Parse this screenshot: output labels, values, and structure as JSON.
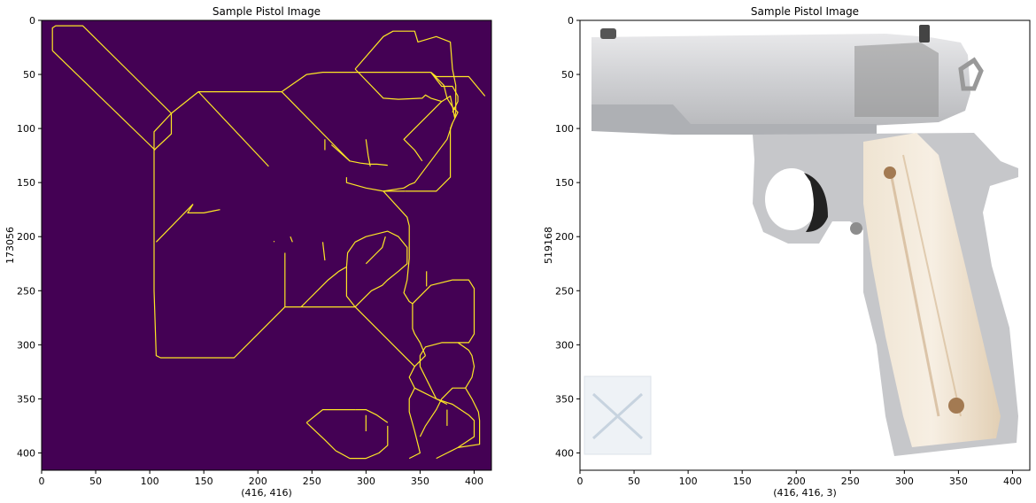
{
  "chart_data": [
    {
      "type": "image",
      "title": "Sample Pistol Image",
      "xlabel": "(416, 416)",
      "ylabel": "173056",
      "xlim": [
        0,
        416
      ],
      "ylim": [
        416,
        0
      ],
      "xticks": [
        0,
        50,
        100,
        150,
        200,
        250,
        300,
        350,
        400
      ],
      "yticks": [
        0,
        50,
        100,
        150,
        200,
        250,
        300,
        350,
        400
      ],
      "background_color": "#440154",
      "edge_color": "#fde725",
      "edges": [
        [
          [
            10,
            28
          ],
          [
            10,
            7
          ],
          [
            13,
            5
          ],
          [
            38,
            5
          ],
          [
            120,
            86
          ],
          [
            104,
            103
          ],
          [
            104,
            250
          ],
          [
            106,
            310
          ],
          [
            110,
            312
          ],
          [
            178,
            312
          ],
          [
            225,
            265
          ],
          [
            290,
            265
          ]
        ],
        [
          [
            10,
            28
          ],
          [
            105,
            120
          ]
        ],
        [
          [
            120,
            86
          ],
          [
            120,
            105
          ],
          [
            104,
            120
          ]
        ],
        [
          [
            120,
            86
          ],
          [
            145,
            66
          ],
          [
            190,
            66
          ],
          [
            200,
            66
          ],
          [
            205,
            66
          ],
          [
            222,
            66
          ]
        ],
        [
          [
            145,
            66
          ],
          [
            210,
            135
          ]
        ],
        [
          [
            222,
            66
          ],
          [
            245,
            50
          ],
          [
            260,
            48
          ],
          [
            270,
            48
          ],
          [
            320,
            48
          ],
          [
            360,
            48
          ]
        ],
        [
          [
            222,
            66
          ],
          [
            285,
            130
          ],
          [
            295,
            132
          ],
          [
            303,
            133
          ],
          [
            310,
            133
          ],
          [
            320,
            134
          ]
        ],
        [
          [
            360,
            48
          ],
          [
            365,
            52
          ],
          [
            395,
            52
          ],
          [
            410,
            70
          ]
        ],
        [
          [
            290,
            45
          ],
          [
            316,
            15
          ],
          [
            325,
            10
          ],
          [
            345,
            10
          ],
          [
            348,
            20
          ],
          [
            365,
            15
          ],
          [
            378,
            20
          ],
          [
            380,
            45
          ],
          [
            383,
            60
          ],
          [
            383,
            85
          ],
          [
            382,
            90
          ],
          [
            378,
            70
          ],
          [
            375,
            72
          ],
          [
            370,
            75
          ],
          [
            360,
            72
          ],
          [
            355,
            69
          ],
          [
            352,
            72
          ],
          [
            330,
            73
          ],
          [
            316,
            72
          ],
          [
            290,
            45
          ]
        ],
        [
          [
            360,
            48
          ],
          [
            370,
            61
          ],
          [
            380,
            61
          ],
          [
            385,
            70
          ],
          [
            385,
            75
          ],
          [
            380,
            85
          ]
        ],
        [
          [
            360,
            48
          ],
          [
            372,
            60
          ],
          [
            375,
            72
          ],
          [
            380,
            80
          ],
          [
            385,
            85
          ],
          [
            380,
            95
          ],
          [
            375,
            110
          ],
          [
            360,
            130
          ],
          [
            345,
            150
          ],
          [
            340,
            152
          ],
          [
            335,
            155
          ]
        ],
        [
          [
            370,
            75
          ],
          [
            360,
            85
          ],
          [
            345,
            100
          ],
          [
            335,
            110
          ],
          [
            340,
            115
          ],
          [
            345,
            120
          ],
          [
            352,
            130
          ]
        ],
        [
          [
            380,
            95
          ],
          [
            378,
            100
          ],
          [
            378,
            145
          ],
          [
            365,
            158
          ],
          [
            352,
            158
          ],
          [
            336,
            158
          ]
        ],
        [
          [
            282,
            145
          ],
          [
            282,
            150
          ],
          [
            300,
            155
          ],
          [
            316,
            158
          ],
          [
            336,
            158
          ]
        ],
        [
          [
            316,
            158
          ],
          [
            338,
            182
          ],
          [
            340,
            190
          ],
          [
            340,
            220
          ],
          [
            338,
            240
          ],
          [
            335,
            252
          ],
          [
            340,
            260
          ],
          [
            343,
            262
          ]
        ],
        [
          [
            343,
            262
          ],
          [
            360,
            245
          ],
          [
            380,
            240
          ],
          [
            395,
            240
          ],
          [
            400,
            248
          ],
          [
            400,
            260
          ],
          [
            400,
            290
          ],
          [
            395,
            298
          ],
          [
            385,
            298
          ]
        ],
        [
          [
            343,
            262
          ],
          [
            343,
            285
          ],
          [
            345,
            290
          ],
          [
            350,
            298
          ],
          [
            355,
            310
          ]
        ],
        [
          [
            385,
            298
          ],
          [
            370,
            298
          ],
          [
            355,
            302
          ],
          [
            350,
            310
          ],
          [
            350,
            320
          ],
          [
            355,
            330
          ],
          [
            360,
            340
          ],
          [
            365,
            350
          ],
          [
            375,
            355
          ]
        ],
        [
          [
            355,
            310
          ],
          [
            345,
            320
          ],
          [
            340,
            330
          ],
          [
            345,
            340
          ],
          [
            355,
            345
          ],
          [
            365,
            350
          ]
        ],
        [
          [
            335,
            155
          ],
          [
            316,
            158
          ]
        ],
        [
          [
            290,
            265
          ],
          [
            345,
            320
          ]
        ],
        [
          [
            290,
            265
          ],
          [
            300,
            255
          ],
          [
            305,
            250
          ],
          [
            315,
            245
          ],
          [
            320,
            240
          ],
          [
            330,
            232
          ],
          [
            338,
            225
          ],
          [
            338,
            210
          ],
          [
            330,
            200
          ],
          [
            320,
            195
          ],
          [
            300,
            200
          ],
          [
            290,
            205
          ],
          [
            283,
            215
          ],
          [
            282,
            228
          ],
          [
            282,
            255
          ],
          [
            290,
            265
          ]
        ],
        [
          [
            282,
            228
          ],
          [
            275,
            232
          ],
          [
            265,
            240
          ],
          [
            245,
            260
          ],
          [
            240,
            265
          ]
        ],
        [
          [
            260,
            205
          ],
          [
            262,
            222
          ]
        ],
        [
          [
            225,
            265
          ],
          [
            225,
            215
          ]
        ],
        [
          [
            140,
            170
          ],
          [
            135,
            178
          ],
          [
            150,
            178
          ],
          [
            160,
            176
          ],
          [
            165,
            175
          ]
        ],
        [
          [
            140,
            170
          ],
          [
            106,
            205
          ]
        ],
        [
          [
            300,
            225
          ],
          [
            310,
            215
          ],
          [
            315,
            210
          ],
          [
            318,
            200
          ]
        ],
        [
          [
            345,
            340
          ],
          [
            340,
            350
          ],
          [
            340,
            362
          ],
          [
            345,
            380
          ],
          [
            348,
            392
          ],
          [
            350,
            400
          ],
          [
            340,
            405
          ]
        ],
        [
          [
            365,
            350
          ],
          [
            380,
            355
          ],
          [
            395,
            365
          ],
          [
            400,
            370
          ],
          [
            400,
            385
          ],
          [
            385,
            395
          ],
          [
            375,
            400
          ],
          [
            365,
            405
          ]
        ],
        [
          [
            392,
            340
          ],
          [
            398,
            350
          ],
          [
            404,
            362
          ],
          [
            405,
            370
          ],
          [
            405,
            392
          ],
          [
            385,
            395
          ]
        ],
        [
          [
            392,
            340
          ],
          [
            380,
            340
          ],
          [
            375,
            345
          ],
          [
            370,
            350
          ],
          [
            365,
            360
          ],
          [
            355,
            375
          ],
          [
            350,
            385
          ]
        ],
        [
          [
            392,
            340
          ],
          [
            398,
            330
          ],
          [
            400,
            320
          ],
          [
            398,
            310
          ],
          [
            395,
            305
          ],
          [
            385,
            298
          ]
        ],
        [
          [
            290,
            360
          ],
          [
            300,
            360
          ],
          [
            310,
            365
          ],
          [
            320,
            372
          ]
        ],
        [
          [
            245,
            372
          ],
          [
            260,
            360
          ],
          [
            290,
            360
          ]
        ],
        [
          [
            245,
            372
          ],
          [
            262,
            388
          ],
          [
            272,
            398
          ],
          [
            285,
            405
          ],
          [
            300,
            405
          ],
          [
            312,
            400
          ],
          [
            320,
            393
          ],
          [
            320,
            375
          ]
        ],
        [
          [
            300,
            365
          ],
          [
            300,
            380
          ]
        ],
        [
          [
            375,
            360
          ],
          [
            375,
            375
          ]
        ],
        [
          [
            262,
            110
          ],
          [
            262,
            120
          ]
        ],
        [
          [
            268,
            115
          ],
          [
            285,
            130
          ]
        ],
        [
          [
            300,
            110
          ],
          [
            302,
            125
          ],
          [
            304,
            135
          ]
        ],
        [
          [
            356,
            232
          ],
          [
            356,
            246
          ]
        ],
        [
          [
            230,
            200
          ],
          [
            232,
            205
          ]
        ],
        [
          [
            215,
            204
          ],
          [
            215,
            205
          ]
        ]
      ]
    },
    {
      "type": "image",
      "title": "Sample Pistol Image",
      "xlabel": "(416, 416, 3)",
      "ylabel": "519168",
      "xlim": [
        0,
        416
      ],
      "ylim": [
        416,
        0
      ],
      "xticks": [
        0,
        50,
        100,
        150,
        200,
        250,
        300,
        350,
        400
      ],
      "yticks": [
        0,
        50,
        100,
        150,
        200,
        250,
        300,
        350,
        400
      ]
    }
  ]
}
